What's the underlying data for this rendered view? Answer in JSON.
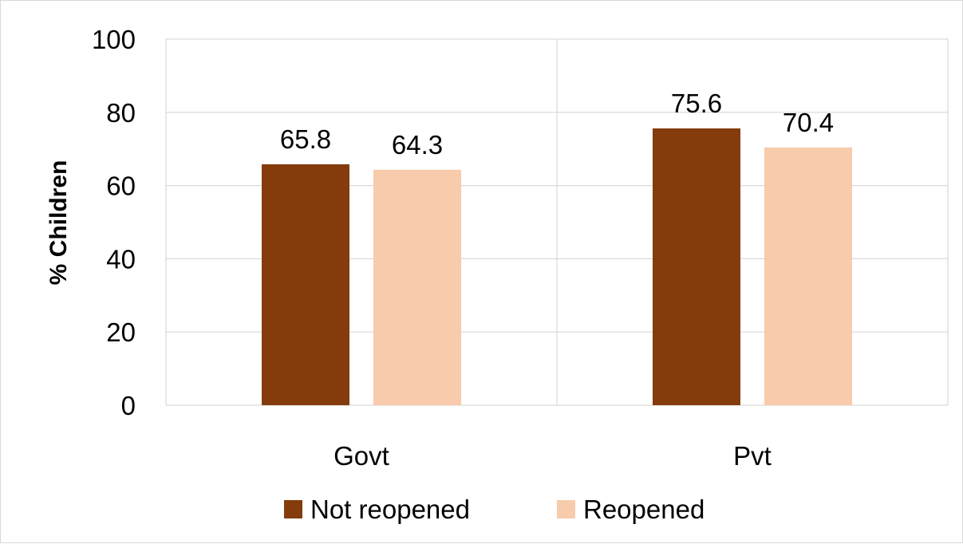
{
  "chart_data": {
    "type": "bar",
    "title": "",
    "xlabel": "",
    "ylabel": "% Children",
    "categories": [
      "Govt",
      "Pvt"
    ],
    "series": [
      {
        "name": "Not reopened",
        "color": "#843c0c",
        "values": [
          65.8,
          75.6
        ],
        "labels": [
          "65.8",
          "75.6"
        ]
      },
      {
        "name": "Reopened",
        "color": "#f8cbad",
        "values": [
          64.3,
          70.4
        ],
        "labels": [
          "64.3",
          "70.4"
        ]
      }
    ],
    "ylim": [
      0,
      100
    ],
    "yticks": [
      0,
      20,
      40,
      60,
      80,
      100
    ],
    "ytick_labels": [
      "0",
      "20",
      "40",
      "60",
      "80",
      "100"
    ],
    "grid": true,
    "gridline_color": "#d9d9d9",
    "legend_position": "bottom"
  }
}
